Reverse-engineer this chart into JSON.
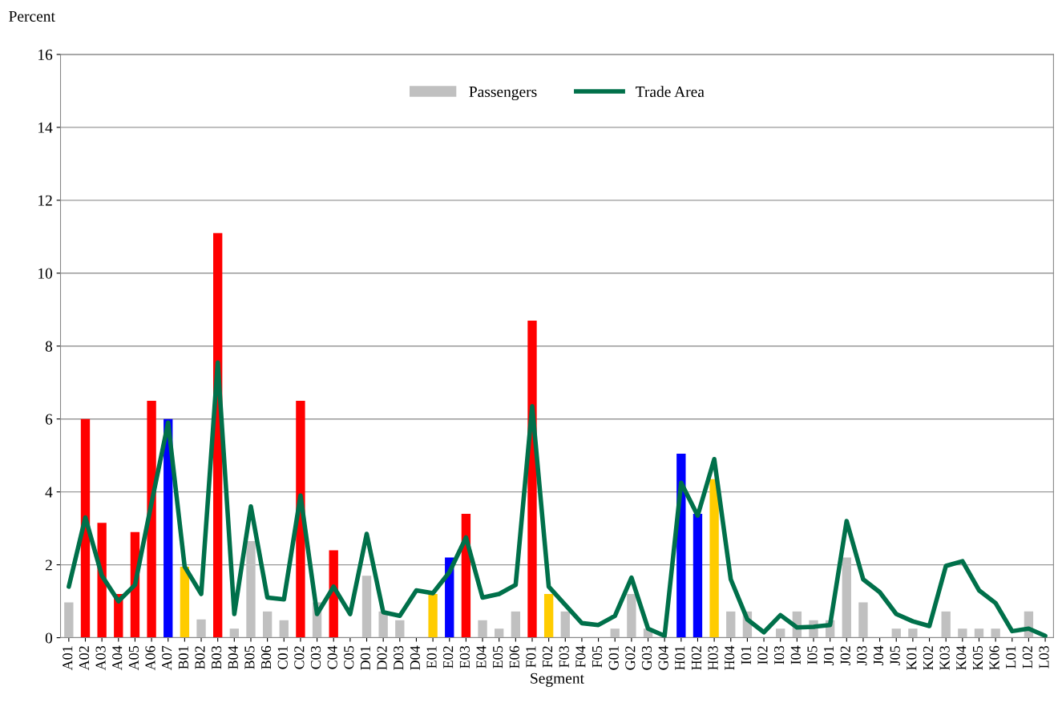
{
  "chart_data": {
    "type": "bar",
    "xlabel": "Segment",
    "ylabel": "Percent",
    "categories": [
      "A01",
      "A02",
      "A03",
      "A04",
      "A05",
      "A06",
      "A07",
      "B01",
      "B02",
      "B03",
      "B04",
      "B05",
      "B06",
      "C01",
      "C02",
      "C03",
      "C04",
      "C05",
      "D01",
      "D02",
      "D03",
      "D04",
      "E01",
      "E02",
      "E03",
      "E04",
      "E05",
      "E06",
      "F01",
      "F02",
      "F03",
      "F04",
      "F05",
      "G01",
      "G02",
      "G03",
      "G04",
      "H01",
      "H02",
      "H03",
      "H04",
      "I01",
      "I02",
      "I03",
      "I04",
      "I05",
      "J01",
      "J02",
      "J03",
      "J04",
      "J05",
      "K01",
      "K02",
      "K03",
      "K04",
      "K05",
      "K06",
      "L01",
      "L02",
      "L03"
    ],
    "series": [
      {
        "name": "Passengers",
        "color": "#c0c0c0",
        "values": [
          0.97,
          6.0,
          3.15,
          1.2,
          2.9,
          6.5,
          6.0,
          1.95,
          0.5,
          11.1,
          0.25,
          2.65,
          0.72,
          0.48,
          6.5,
          0.97,
          2.4,
          0,
          1.7,
          0.72,
          0.48,
          0,
          1.2,
          2.2,
          3.4,
          0.48,
          0.25,
          0.72,
          8.7,
          1.2,
          0.72,
          0,
          0,
          0.25,
          1.2,
          0.25,
          0,
          5.05,
          3.4,
          4.35,
          0.72,
          0.72,
          null,
          0.25,
          0.72,
          0.48,
          0.48,
          2.2,
          0.97,
          0,
          0.25,
          0.25,
          0,
          0.72,
          0.25,
          0.25,
          0.25,
          null,
          0.72,
          0
        ],
        "colors": [
          "#c0c0c0",
          "#ff0000",
          "#ff0000",
          "#ff0000",
          "#ff0000",
          "#ff0000",
          "#0000ff",
          "#ffcc00",
          "#c0c0c0",
          "#ff0000",
          "#c0c0c0",
          "#c0c0c0",
          "#c0c0c0",
          "#c0c0c0",
          "#ff0000",
          "#c0c0c0",
          "#ff0000",
          "#c0c0c0",
          "#c0c0c0",
          "#c0c0c0",
          "#c0c0c0",
          "#c0c0c0",
          "#ffcc00",
          "#0000ff",
          "#ff0000",
          "#c0c0c0",
          "#c0c0c0",
          "#c0c0c0",
          "#ff0000",
          "#ffcc00",
          "#c0c0c0",
          "#c0c0c0",
          "#c0c0c0",
          "#c0c0c0",
          "#c0c0c0",
          "#c0c0c0",
          "#c0c0c0",
          "#0000ff",
          "#0000ff",
          "#ffcc00",
          "#c0c0c0",
          "#c0c0c0",
          "#c0c0c0",
          "#c0c0c0",
          "#c0c0c0",
          "#c0c0c0",
          "#c0c0c0",
          "#c0c0c0",
          "#c0c0c0",
          "#c0c0c0",
          "#c0c0c0",
          "#c0c0c0",
          "#c0c0c0",
          "#c0c0c0",
          "#c0c0c0",
          "#c0c0c0",
          "#c0c0c0",
          "#c0c0c0",
          "#c0c0c0",
          "#c0c0c0"
        ]
      },
      {
        "name": "Trade Area",
        "type": "line",
        "color": "#00704a",
        "values": [
          1.4,
          3.3,
          1.7,
          1.0,
          1.45,
          3.7,
          5.9,
          1.95,
          1.2,
          7.55,
          0.65,
          3.6,
          1.1,
          1.05,
          3.9,
          0.65,
          1.4,
          0.65,
          2.85,
          0.7,
          0.6,
          1.3,
          1.22,
          1.8,
          2.75,
          1.1,
          1.2,
          1.45,
          6.35,
          1.4,
          0.9,
          0.4,
          0.35,
          0.6,
          1.65,
          0.25,
          0.05,
          4.25,
          3.35,
          4.9,
          1.6,
          0.5,
          0.15,
          0.62,
          0.28,
          0.3,
          0.35,
          3.2,
          1.6,
          1.25,
          0.65,
          0.45,
          0.32,
          1.97,
          2.1,
          1.3,
          0.95,
          0.18,
          0.25,
          0.05
        ]
      }
    ],
    "ylim": [
      0,
      16
    ],
    "yticks": [
      0,
      2,
      4,
      6,
      8,
      10,
      12,
      14,
      16
    ],
    "grid": "y",
    "legend": "top"
  }
}
